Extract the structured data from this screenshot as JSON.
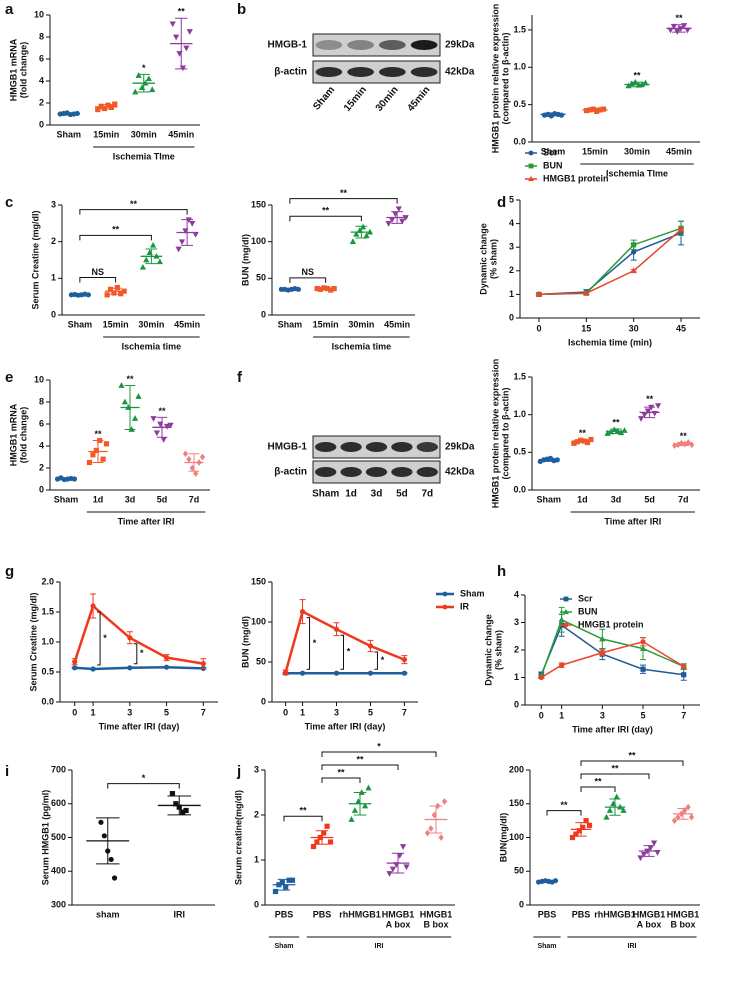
{
  "chart_data": [
    {
      "type": "dot",
      "panel": "a",
      "ylabel": [
        "HMGB1 mRNA",
        "(fold change)"
      ],
      "xlabel": "Ischemia TIme",
      "categories": [
        "Sham",
        "15min",
        "30min",
        "45min"
      ],
      "colors": [
        "#1f5f9e",
        "#f05a28",
        "#1a9641",
        "#8e3a9e"
      ],
      "markers": [
        "circle",
        "square",
        "triangle",
        "triangle-down"
      ],
      "points": [
        [
          1.0,
          1.05,
          1.1,
          0.95,
          1.0,
          1.05
        ],
        [
          1.4,
          1.7,
          1.5,
          1.8,
          1.6,
          1.9
        ],
        [
          3.0,
          4.5,
          3.4,
          3.8,
          4.2,
          3.2
        ],
        [
          9.2,
          8.0,
          6.5,
          5.2,
          7.0,
          8.5
        ]
      ],
      "mean": [
        1.0,
        1.65,
        3.8,
        7.4
      ],
      "sd": [
        0.1,
        0.2,
        0.8,
        2.3
      ],
      "ylim": [
        0,
        10
      ],
      "yticks": [
        0,
        2,
        4,
        6,
        8,
        10
      ],
      "stars": [
        null,
        null,
        "*",
        "**"
      ]
    },
    {
      "type": "blot",
      "panel": "b",
      "rows": [
        "HMGB-1",
        "β-actin"
      ],
      "sizes": [
        "29kDa",
        "42kDa"
      ],
      "lanes": [
        "Sham",
        "15min",
        "30min",
        "45min"
      ]
    },
    {
      "type": "dot",
      "ylabel": [
        "HMGB1 protein relative expression",
        "(compared to β-actin)"
      ],
      "xlabel": "Ischemia TIme",
      "categories": [
        "Sham",
        "15min",
        "30min",
        "45min"
      ],
      "colors": [
        "#1f5f9e",
        "#f05a28",
        "#1a9641",
        "#8e3a9e"
      ],
      "markers": [
        "circle",
        "square",
        "triangle",
        "triangle-down"
      ],
      "points": [
        [
          0.36,
          0.37,
          0.35,
          0.38,
          0.37,
          0.36
        ],
        [
          0.42,
          0.43,
          0.44,
          0.41,
          0.43,
          0.44
        ],
        [
          0.75,
          0.78,
          0.8,
          0.76,
          0.77,
          0.79
        ],
        [
          1.5,
          1.55,
          1.48,
          1.52,
          1.56,
          1.5
        ]
      ],
      "mean": [
        0.37,
        0.43,
        0.77,
        1.52
      ],
      "sd": [
        0.02,
        0.02,
        0.03,
        0.05
      ],
      "ylim": [
        0,
        1.7
      ],
      "yticks": [
        {
          "value": 0,
          "label": "0.0"
        },
        {
          "value": 0.5,
          "label": "0.5"
        },
        {
          "value": 1,
          "label": "1.0"
        },
        {
          "value": 1.5,
          "label": "1.5"
        }
      ],
      "stars": [
        null,
        null,
        "**",
        "**"
      ]
    },
    {
      "type": "dot",
      "panel": "c",
      "ylabel": [
        "Serum Creatine (mg/dl)"
      ],
      "xlabel": "Ischemia time",
      "categories": [
        "Sham",
        "15min",
        "30min",
        "45min"
      ],
      "colors": [
        "#1f5f9e",
        "#f05a28",
        "#1a9641",
        "#8e3a9e"
      ],
      "markers": [
        "circle",
        "square",
        "triangle",
        "triangle-down"
      ],
      "points": [
        [
          0.55,
          0.56,
          0.54,
          0.55,
          0.57,
          0.55
        ],
        [
          0.55,
          0.7,
          0.6,
          0.75,
          0.58,
          0.65
        ],
        [
          1.3,
          1.5,
          1.7,
          1.9,
          1.6,
          1.45
        ],
        [
          1.8,
          2.0,
          2.3,
          2.6,
          2.5,
          2.2
        ]
      ],
      "mean": [
        0.55,
        0.65,
        1.6,
        2.25
      ],
      "sd": [
        0.02,
        0.08,
        0.2,
        0.35
      ],
      "ylim": [
        0,
        3
      ],
      "yticks": [
        0,
        1,
        2,
        3
      ],
      "brackets": [
        {
          "text": "NS",
          "from": 0,
          "to": 1
        },
        {
          "text": "**",
          "from": 0,
          "to": 2
        },
        {
          "text": "**",
          "from": 0,
          "to": 3
        }
      ]
    },
    {
      "type": "dot",
      "ylabel": [
        "BUN (mg/dl)"
      ],
      "xlabel": "Ischemia time",
      "categories": [
        "Sham",
        "15min",
        "30min",
        "45min"
      ],
      "colors": [
        "#1f5f9e",
        "#f05a28",
        "#1a9641",
        "#8e3a9e"
      ],
      "markers": [
        "circle",
        "square",
        "triangle",
        "triangle-down"
      ],
      "points": [
        [
          35,
          35,
          34,
          35,
          36,
          35
        ],
        [
          36,
          35,
          37,
          36,
          34,
          36
        ],
        [
          100,
          110,
          115,
          120,
          108,
          113
        ],
        [
          125,
          130,
          138,
          145,
          128,
          133
        ]
      ],
      "mean": [
        35,
        36,
        113,
        133
      ],
      "sd": [
        1,
        1,
        8,
        8
      ],
      "ylim": [
        0,
        150
      ],
      "yticks": [
        0,
        50,
        100,
        150
      ],
      "brackets": [
        {
          "text": "NS",
          "from": 0,
          "to": 1
        },
        {
          "text": "**",
          "from": 0,
          "to": 2
        },
        {
          "text": "**",
          "from": 0,
          "to": 3
        }
      ]
    },
    {
      "type": "line",
      "panel": "d",
      "ylabel": [
        "Dynamic change",
        "(% sham)"
      ],
      "xlabel": "Ischemia time (min)",
      "x": [
        0,
        15,
        30,
        45
      ],
      "xlim": [
        -6,
        51
      ],
      "xticks": [
        0,
        15,
        30,
        45
      ],
      "ylim": [
        0,
        5
      ],
      "yticks": [
        0,
        1,
        2,
        3,
        4,
        5
      ],
      "legend": "top",
      "series": [
        {
          "name": "Scr",
          "color": "#1f5a96",
          "marker": "circle",
          "values": [
            1,
            1.1,
            2.8,
            3.6
          ],
          "errors": [
            0.05,
            0.1,
            0.35,
            0.5
          ]
        },
        {
          "name": "BUN",
          "color": "#2a9a3a",
          "marker": "square",
          "values": [
            1,
            1.05,
            3.1,
            3.8
          ],
          "errors": [
            0.05,
            0.05,
            0.2,
            0.3
          ]
        },
        {
          "name": "HMGB1 protein",
          "color": "#e8452c",
          "marker": "triangle",
          "values": [
            1,
            1.05,
            2.0,
            3.75
          ],
          "errors": [
            0.05,
            0.05,
            0.05,
            0.1
          ]
        }
      ]
    },
    {
      "type": "dot",
      "panel": "e",
      "ylabel": [
        "HMGB1 mRNA",
        "(fold change)"
      ],
      "xlabel": "Time after IRI",
      "categories": [
        "Sham",
        "1d",
        "3d",
        "5d",
        "7d"
      ],
      "colors": [
        "#1f5f9e",
        "#f05a28",
        "#1a9641",
        "#8e3a9e",
        "#f08080"
      ],
      "markers": [
        "circle",
        "square",
        "triangle",
        "triangle-down",
        "diamond"
      ],
      "points": [
        [
          1,
          1.1,
          0.95,
          1,
          1.05,
          1
        ],
        [
          2.5,
          3.2,
          3.6,
          4.5,
          2.8,
          4.2
        ],
        [
          9.5,
          8.0,
          7.5,
          5.5,
          6.5,
          8.5
        ],
        [
          6.5,
          5.2,
          6.0,
          4.6,
          5.8,
          5.9
        ],
        [
          3.3,
          2.8,
          2.0,
          1.5,
          2.5,
          3.0
        ]
      ],
      "mean": [
        1.0,
        3.5,
        7.5,
        5.7,
        2.5
      ],
      "sd": [
        0.05,
        1.0,
        2.0,
        0.9,
        0.8
      ],
      "ylim": [
        0,
        10
      ],
      "yticks": [
        0,
        2,
        4,
        6,
        8,
        10
      ],
      "stars": [
        null,
        "**",
        "**",
        "**",
        null
      ]
    },
    {
      "type": "blot",
      "panel": "f",
      "rows": [
        "HMGB-1",
        "β-actin"
      ],
      "sizes": [
        "29kDa",
        "42kDa"
      ],
      "lanes": [
        "Sham",
        "1d",
        "3d",
        "5d",
        "7d"
      ]
    },
    {
      "type": "dot",
      "ylabel": [
        "HMGB1 protein relative expression",
        "(compared to β-actin)"
      ],
      "xlabel": "Time after IRI",
      "categories": [
        "Sham",
        "1d",
        "3d",
        "5d",
        "7d"
      ],
      "colors": [
        "#1f5f9e",
        "#f05a28",
        "#1a9641",
        "#8e3a9e",
        "#f08080"
      ],
      "markers": [
        "circle",
        "square",
        "triangle",
        "triangle-down",
        "diamond"
      ],
      "points": [
        [
          0.38,
          0.4,
          0.41,
          0.42,
          0.39,
          0.4
        ],
        [
          0.62,
          0.64,
          0.66,
          0.65,
          0.63,
          0.67
        ],
        [
          0.75,
          0.77,
          0.8,
          0.78,
          0.76,
          0.79
        ],
        [
          0.95,
          1.0,
          1.05,
          1.1,
          1.02,
          1.12
        ],
        [
          0.59,
          0.6,
          0.62,
          0.61,
          0.63,
          0.6
        ]
      ],
      "mean": [
        0.4,
        0.65,
        0.78,
        1.03,
        0.61
      ],
      "sd": [
        0.02,
        0.02,
        0.03,
        0.07,
        0.02
      ],
      "ylim": [
        0,
        1.5
      ],
      "yticks": [
        {
          "value": 0,
          "label": "0.0"
        },
        {
          "value": 0.5,
          "label": "0.5"
        },
        {
          "value": 1,
          "label": "1.0"
        },
        {
          "value": 1.5,
          "label": "1.5"
        }
      ],
      "stars": [
        null,
        "**",
        "**",
        "**",
        "**"
      ]
    },
    {
      "type": "line",
      "panel": "g",
      "ylabel": [
        "Serum Creatine (mg/dl)"
      ],
      "xlabel": "Time after IRI (day)",
      "x": [
        0,
        1,
        3,
        5,
        7
      ],
      "xlim": [
        -0.8,
        7.8
      ],
      "xticks": [
        0,
        1,
        3,
        5,
        7
      ],
      "ylim": [
        0,
        2
      ],
      "yticks": [
        {
          "value": 0,
          "label": "0.0"
        },
        {
          "value": 0.5,
          "label": "0.5"
        },
        {
          "value": 1,
          "label": "1.0"
        },
        {
          "value": 1.5,
          "label": "1.5"
        },
        {
          "value": 2,
          "label": "2.0"
        }
      ],
      "series": [
        {
          "color": "#1f5f9e",
          "marker": "circle",
          "values": [
            0.57,
            0.55,
            0.57,
            0.58,
            0.56
          ],
          "errors": [
            0.01,
            0.01,
            0.01,
            0.01,
            0.01
          ]
        },
        {
          "color": "#f0391c",
          "marker": "circle",
          "values": [
            0.67,
            1.6,
            1.07,
            0.74,
            0.64
          ],
          "errors": [
            0.05,
            0.2,
            0.1,
            0.05,
            0.08
          ]
        }
      ],
      "stars": [
        null,
        "*",
        "*",
        null,
        null
      ]
    },
    {
      "type": "line",
      "ylabel": [
        "BUN (mg/dl)"
      ],
      "xlabel": "Time after IRI (day)",
      "x": [
        0,
        1,
        3,
        5,
        7
      ],
      "xlim": [
        -0.8,
        7.8
      ],
      "xticks": [
        0,
        1,
        3,
        5,
        7
      ],
      "ylim": [
        0,
        150
      ],
      "yticks": [
        0,
        50,
        100,
        150
      ],
      "legend": "right",
      "series": [
        {
          "name": "Sham",
          "color": "#1f5f9e",
          "marker": "circle",
          "values": [
            36,
            36,
            36,
            36,
            36
          ],
          "errors": [
            1,
            1,
            1,
            1,
            1
          ]
        },
        {
          "name": "IR",
          "color": "#f0391c",
          "marker": "circle",
          "values": [
            37,
            113,
            91,
            70,
            53
          ],
          "errors": [
            3,
            15,
            8,
            7,
            5
          ]
        }
      ],
      "stars": [
        null,
        "*",
        "*",
        "*",
        null
      ]
    },
    {
      "type": "line",
      "panel": "h",
      "ylabel": [
        "Dynamic change",
        "(% sham)"
      ],
      "xlabel": "Time after IRI (day)",
      "x": [
        0,
        1,
        3,
        5,
        7
      ],
      "xlim": [
        -0.8,
        7.8
      ],
      "xticks": [
        0,
        1,
        3,
        5,
        7
      ],
      "ylim": [
        0,
        4
      ],
      "yticks": [
        0,
        1,
        2,
        3,
        4
      ],
      "legend": "top-right",
      "series": [
        {
          "name": "Scr",
          "color": "#1f5a96",
          "marker": "square",
          "values": [
            1.1,
            2.9,
            1.85,
            1.3,
            1.1
          ],
          "errors": [
            0.1,
            0.4,
            0.2,
            0.15,
            0.2
          ]
        },
        {
          "name": "BUN",
          "color": "#2a9a3a",
          "marker": "triangle",
          "values": [
            1.05,
            3.1,
            2.4,
            2.05,
            1.4
          ],
          "errors": [
            0.05,
            0.45,
            0.35,
            0.4,
            0.1
          ]
        },
        {
          "name": "HMGB1 protein",
          "color": "#e8452c",
          "marker": "circle",
          "values": [
            1,
            1.45,
            1.9,
            2.3,
            1.4
          ],
          "errors": [
            0.03,
            0.08,
            0.1,
            0.15,
            0.05
          ]
        }
      ]
    },
    {
      "type": "dot",
      "panel": "i",
      "ylabel": [
        "Serum HMGB1 (pg/ml)"
      ],
      "categories": [
        "sham",
        "IRI"
      ],
      "colors": [
        "#111111",
        "#111111"
      ],
      "markers": [
        "circle",
        "square"
      ],
      "points": [
        [
          545,
          505,
          460,
          435,
          380
        ],
        [
          630,
          600,
          590,
          575,
          580
        ]
      ],
      "mean": [
        490,
        595
      ],
      "sd": [
        68,
        28
      ],
      "ylim": [
        300,
        700
      ],
      "yticks": [
        300,
        400,
        500,
        600,
        700
      ],
      "brackets": [
        {
          "text": "*",
          "from": 0,
          "to": 1
        }
      ]
    },
    {
      "type": "dot",
      "panel": "j",
      "ylabel": [
        "Serum creatine(mg/dl)"
      ],
      "categories": [
        "PBS",
        "PBS",
        "rhHMGB1",
        [
          "HMGB1",
          "A box"
        ],
        [
          "HMGB1",
          "B box"
        ]
      ],
      "xgroups": [
        "Sham",
        "IRI"
      ],
      "colors": [
        "#1f5f9e",
        "#f0391c",
        "#1a9641",
        "#8e3a9e",
        "#f08080"
      ],
      "markers": [
        "square",
        "square",
        "triangle",
        "triangle-down",
        "diamond"
      ],
      "points": [
        [
          0.3,
          0.45,
          0.5,
          0.4,
          0.55,
          0.55
        ],
        [
          1.3,
          1.4,
          1.5,
          1.6,
          1.75,
          1.4
        ],
        [
          1.9,
          2.1,
          2.3,
          2.5,
          2.2,
          2.6
        ],
        [
          0.7,
          0.8,
          0.9,
          1.1,
          1.3,
          0.85
        ],
        [
          1.6,
          1.7,
          2.0,
          2.2,
          1.5,
          2.3
        ]
      ],
      "mean": [
        0.45,
        1.5,
        2.25,
        0.93,
        1.9
      ],
      "sd": [
        0.12,
        0.15,
        0.25,
        0.22,
        0.3
      ],
      "ylim": [
        0,
        3
      ],
      "yticks": [
        0,
        1,
        2,
        3
      ],
      "brackets": [
        {
          "text": "**",
          "from": 0,
          "to": 1
        },
        {
          "text": "**",
          "from": 1,
          "to": 2
        },
        {
          "text": "**",
          "from": 1,
          "to": 3
        },
        {
          "text": "*",
          "from": 1,
          "to": 4
        }
      ]
    },
    {
      "type": "dot",
      "ylabel": [
        "BUN(mg/dl)"
      ],
      "categories": [
        "PBS",
        "PBS",
        "rhHMGB1",
        [
          "HMGB1",
          "A box"
        ],
        [
          "HMGB1",
          "B box"
        ]
      ],
      "xgroups": [
        "Sham",
        "IRI"
      ],
      "colors": [
        "#1f5f9e",
        "#f0391c",
        "#1a9641",
        "#8e3a9e",
        "#f08080"
      ],
      "markers": [
        "circle",
        "square",
        "triangle",
        "triangle-down",
        "diamond"
      ],
      "points": [
        [
          34,
          35,
          36,
          35,
          34,
          36
        ],
        [
          100,
          105,
          110,
          115,
          125,
          118
        ],
        [
          130,
          140,
          150,
          160,
          145,
          140
        ],
        [
          70,
          75,
          80,
          85,
          92,
          78
        ],
        [
          125,
          130,
          135,
          140,
          145,
          130
        ]
      ],
      "mean": [
        35,
        112,
        145,
        80,
        135
      ],
      "sd": [
        1,
        10,
        12,
        8,
        8
      ],
      "ylim": [
        0,
        200
      ],
      "yticks": [
        0,
        50,
        100,
        150,
        200
      ],
      "brackets": [
        {
          "text": "**",
          "from": 0,
          "to": 1
        },
        {
          "text": "**",
          "from": 1,
          "to": 2
        },
        {
          "text": "**",
          "from": 1,
          "to": 3
        },
        {
          "text": "**",
          "from": 1,
          "to": 4
        }
      ]
    }
  ]
}
